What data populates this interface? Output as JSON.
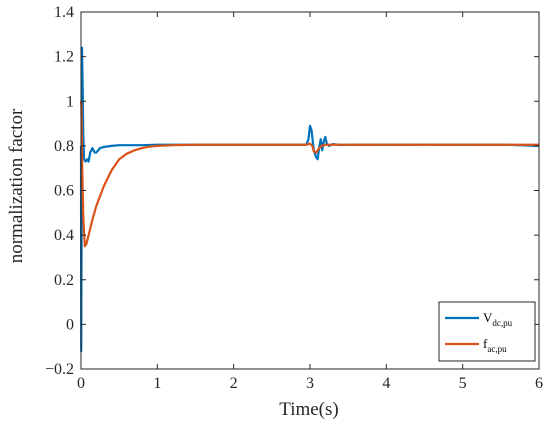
{
  "chart_data": {
    "type": "line",
    "title": "",
    "xlabel": "Time(s)",
    "ylabel": "normalization factor",
    "xlim": [
      0,
      6
    ],
    "ylim": [
      -0.2,
      1.4
    ],
    "xticks": [
      0,
      1,
      2,
      3,
      4,
      5,
      6
    ],
    "yticks": [
      -0.2,
      0,
      0.2,
      0.4,
      0.6,
      0.8,
      1,
      1.2,
      1.4
    ],
    "xtick_labels": [
      "0",
      "1",
      "2",
      "3",
      "4",
      "5",
      "6"
    ],
    "ytick_labels": [
      "−0.2",
      "0",
      "0.2",
      "0.4",
      "0.6",
      "0.8",
      "1",
      "1.2",
      "1.4"
    ],
    "grid": false,
    "legend_position": "bottom-right",
    "series": [
      {
        "name": "V",
        "name_subscript": "dc,pu",
        "color": "#0072BD",
        "x": [
          0,
          0.003,
          0.008,
          0.013,
          0.02,
          0.03,
          0.04,
          0.06,
          0.08,
          0.1,
          0.12,
          0.15,
          0.18,
          0.2,
          0.25,
          0.3,
          0.4,
          0.5,
          0.6,
          0.8,
          1.0,
          1.5,
          2.0,
          2.5,
          2.95,
          2.98,
          3.0,
          3.02,
          3.05,
          3.08,
          3.1,
          3.12,
          3.14,
          3.16,
          3.18,
          3.2,
          3.22,
          3.25,
          3.3,
          3.4,
          3.6,
          4.0,
          4.5,
          5.0,
          5.5,
          6.0
        ],
        "y": [
          0.8,
          -0.12,
          0.45,
          1.24,
          1.1,
          0.85,
          0.74,
          0.73,
          0.74,
          0.73,
          0.77,
          0.79,
          0.77,
          0.77,
          0.79,
          0.795,
          0.8,
          0.803,
          0.803,
          0.803,
          0.805,
          0.805,
          0.805,
          0.805,
          0.805,
          0.83,
          0.89,
          0.87,
          0.78,
          0.75,
          0.74,
          0.79,
          0.83,
          0.78,
          0.82,
          0.84,
          0.81,
          0.8,
          0.808,
          0.804,
          0.806,
          0.805,
          0.806,
          0.805,
          0.806,
          0.8
        ]
      },
      {
        "name": "f",
        "name_subscript": "ac,pu",
        "color": "#D95319",
        "x": [
          0,
          0.005,
          0.015,
          0.03,
          0.05,
          0.07,
          0.1,
          0.15,
          0.2,
          0.3,
          0.4,
          0.5,
          0.6,
          0.7,
          0.8,
          0.9,
          1.0,
          1.2,
          1.5,
          2.0,
          2.5,
          2.95,
          3.0,
          3.03,
          3.05,
          3.08,
          3.12,
          3.15,
          3.2,
          3.3,
          4.0,
          5.0,
          6.0
        ],
        "y": [
          1.0,
          0.98,
          0.72,
          0.48,
          0.35,
          0.36,
          0.4,
          0.47,
          0.53,
          0.62,
          0.69,
          0.74,
          0.765,
          0.78,
          0.79,
          0.797,
          0.8,
          0.803,
          0.805,
          0.805,
          0.805,
          0.805,
          0.81,
          0.8,
          0.775,
          0.77,
          0.79,
          0.8,
          0.805,
          0.805,
          0.805,
          0.805,
          0.805
        ]
      }
    ]
  }
}
